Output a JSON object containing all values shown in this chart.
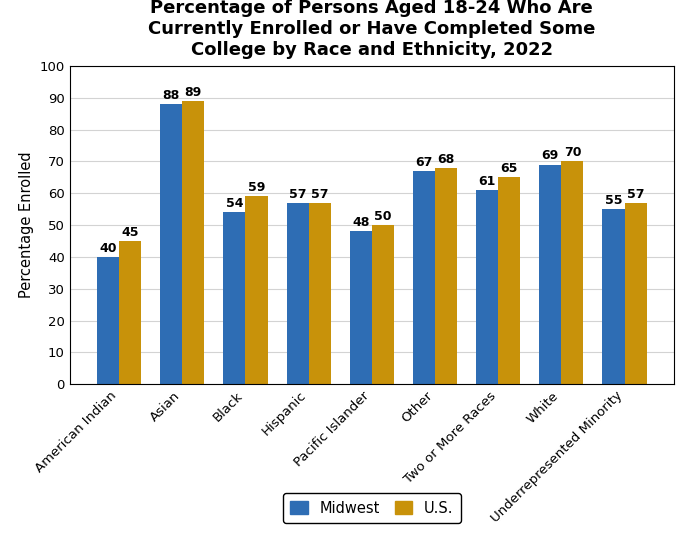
{
  "title": "Percentage of Persons Aged 18-24 Who Are\nCurrently Enrolled or Have Completed Some\nCollege by Race and Ethnicity, 2022",
  "ylabel": "Percentage Enrolled",
  "categories": [
    "American Indian",
    "Asian",
    "Black",
    "Hispanic",
    "Pacific Islander",
    "Other",
    "Two or More Races",
    "White",
    "Underrepresented Minority"
  ],
  "midwest": [
    40,
    88,
    54,
    57,
    48,
    67,
    61,
    69,
    55
  ],
  "us": [
    45,
    89,
    59,
    57,
    50,
    68,
    65,
    70,
    57
  ],
  "color_midwest": "#2E6DB4",
  "color_us": "#C8920A",
  "ylim": [
    0,
    100
  ],
  "yticks": [
    0,
    10,
    20,
    30,
    40,
    50,
    60,
    70,
    80,
    90,
    100
  ],
  "legend_labels": [
    "Midwest",
    "U.S."
  ],
  "bar_width": 0.35,
  "title_fontsize": 13,
  "tick_fontsize": 9.5,
  "value_fontsize": 9,
  "legend_fontsize": 10.5,
  "ylabel_fontsize": 10.5
}
